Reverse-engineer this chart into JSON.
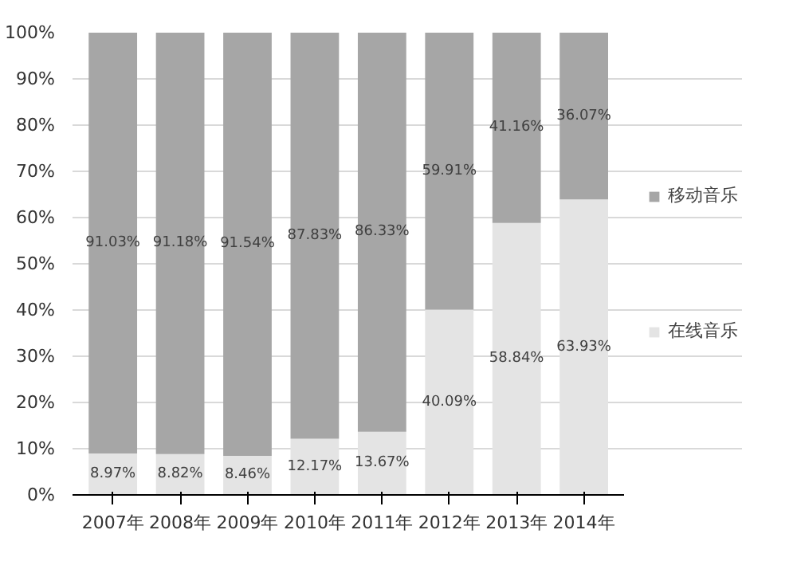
{
  "chart_data": {
    "type": "bar",
    "stacked": true,
    "categories": [
      "2007年",
      "2008年",
      "2009年",
      "2010年",
      "2011年",
      "2012年",
      "2013年",
      "2014年"
    ],
    "series": [
      {
        "name": "在线音乐",
        "color": "#e4e4e4",
        "values": [
          8.97,
          8.82,
          8.46,
          12.17,
          13.67,
          40.09,
          58.84,
          63.93
        ],
        "value_labels": [
          "8.97%",
          "8.82%",
          "8.46%",
          "12.17%",
          "13.67%",
          "40.09%",
          "58.84%",
          "63.93%"
        ]
      },
      {
        "name": "移动音乐",
        "color": "#a6a6a6",
        "values": [
          91.03,
          91.18,
          91.54,
          87.83,
          86.33,
          59.91,
          41.16,
          36.07
        ],
        "value_labels": [
          "91.03%",
          "91.18%",
          "91.54%",
          "87.83%",
          "86.33%",
          "59.91%",
          "41.16%",
          "36.07%"
        ]
      }
    ],
    "ylim": [
      0,
      100
    ],
    "yticks": [
      {
        "value": 0,
        "label": "0%"
      },
      {
        "value": 10,
        "label": "10%"
      },
      {
        "value": 20,
        "label": "20%"
      },
      {
        "value": 30,
        "label": "30%"
      },
      {
        "value": 40,
        "label": "40%"
      },
      {
        "value": 50,
        "label": "50%"
      },
      {
        "value": 60,
        "label": "60%"
      },
      {
        "value": 70,
        "label": "70%"
      },
      {
        "value": 80,
        "label": "80%"
      },
      {
        "value": 90,
        "label": "90%"
      },
      {
        "value": 100,
        "label": "100%"
      }
    ],
    "grid": "y",
    "legend": "right"
  }
}
